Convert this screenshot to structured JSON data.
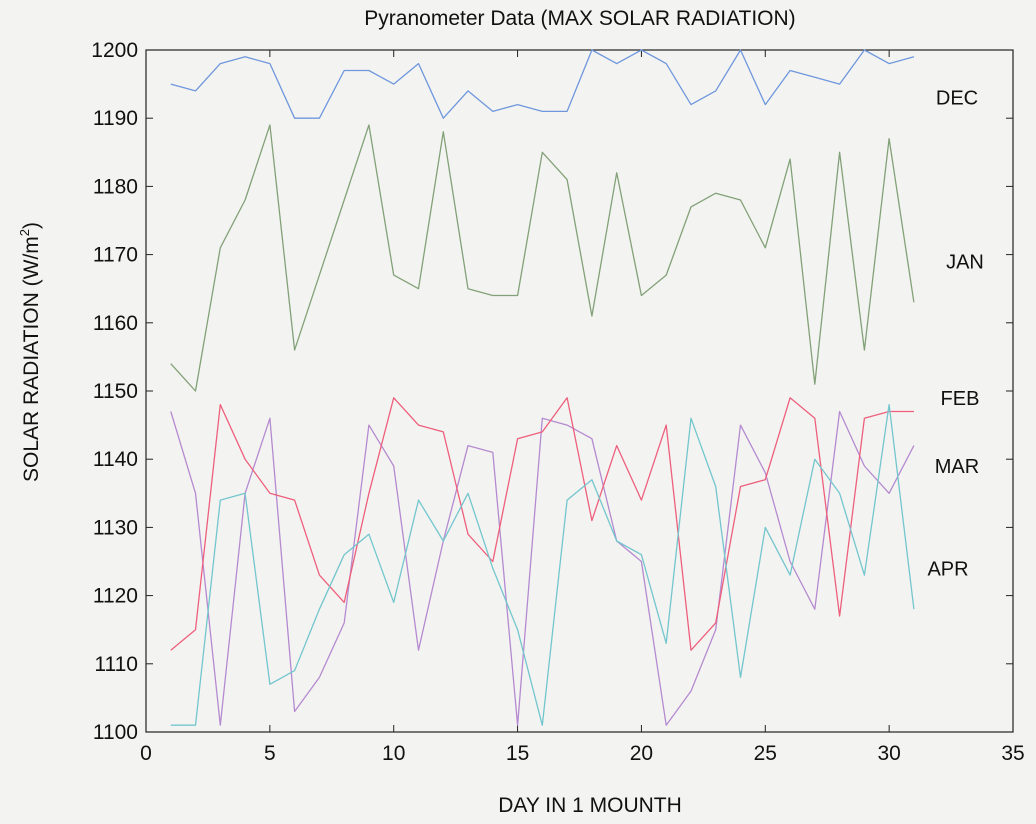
{
  "chart_data": {
    "type": "line",
    "title": "Pyranometer Data (MAX SOLAR RADIATION)",
    "xlabel": "DAY IN 1 MOUNTH",
    "ylabel_main": "SOLAR RADIATION (W/m",
    "ylabel_sup": "2",
    "ylabel_close": ")",
    "xlim": [
      0,
      35
    ],
    "ylim": [
      1100,
      1200
    ],
    "xticks": [
      0,
      5,
      10,
      15,
      20,
      25,
      30,
      35
    ],
    "yticks": [
      1100,
      1110,
      1120,
      1130,
      1140,
      1150,
      1160,
      1170,
      1180,
      1190,
      1200
    ],
    "grid": false,
    "x": [
      1,
      2,
      3,
      4,
      5,
      6,
      7,
      8,
      9,
      10,
      11,
      12,
      13,
      14,
      15,
      16,
      17,
      18,
      19,
      20,
      21,
      22,
      23,
      24,
      25,
      26,
      27,
      28,
      29,
      30,
      31
    ],
    "series": [
      {
        "name": "DEC",
        "color": "#6f97dd",
        "values": [
          1195,
          1194,
          1198,
          1199,
          1198,
          1190,
          1190,
          1197,
          1197,
          1195,
          1198,
          1190,
          1194,
          1191,
          1192,
          1191,
          1191,
          1200,
          1198,
          1200,
          1198,
          1192,
          1194,
          1200,
          1192,
          1197,
          1196,
          1195,
          1200,
          1198,
          1199
        ]
      },
      {
        "name": "JAN",
        "color": "#83a178",
        "values": [
          1154,
          1150,
          1171,
          1178,
          1189,
          1156,
          1167,
          1178,
          1189,
          1167,
          1165,
          1188,
          1165,
          1164,
          1164,
          1185,
          1181,
          1161,
          1182,
          1164,
          1167,
          1177,
          1179,
          1178,
          1171,
          1184,
          1151,
          1185,
          1156,
          1187,
          1163
        ]
      },
      {
        "name": "FEB",
        "color": "#b58ad0",
        "values": [
          1147,
          1135,
          1101,
          1135,
          1146,
          1103,
          1108,
          1116,
          1145,
          1139,
          1112,
          1128,
          1142,
          1141,
          1101,
          1146,
          1145,
          1143,
          1128,
          1125,
          1101,
          1106,
          1115,
          1145,
          1138,
          1125,
          1118,
          1147,
          1139,
          1135,
          1142
        ]
      },
      {
        "name": "MAR",
        "color": "#ee5f7c",
        "values": [
          1112,
          1115,
          1148,
          1140,
          1135,
          1134,
          1123,
          1119,
          1135,
          1149,
          1145,
          1144,
          1129,
          1125,
          1143,
          1144,
          1149,
          1131,
          1142,
          1134,
          1145,
          1112,
          1116,
          1136,
          1137,
          1149,
          1146,
          1117,
          1146,
          1147,
          1147
        ]
      },
      {
        "name": "APR",
        "color": "#73c6ce",
        "values": [
          1101,
          1101,
          1134,
          1135,
          1107,
          1109,
          1118,
          1126,
          1129,
          1119,
          1134,
          1128,
          1135,
          1124,
          1115,
          1101,
          1134,
          1137,
          1128,
          1126,
          1113,
          1146,
          1136,
          1108,
          1130,
          1123,
          1140,
          1135,
          1123,
          1148,
          1118
        ]
      }
    ],
    "legend": "series names as labels at right edge of plot",
    "label_positions": "right-inside"
  }
}
